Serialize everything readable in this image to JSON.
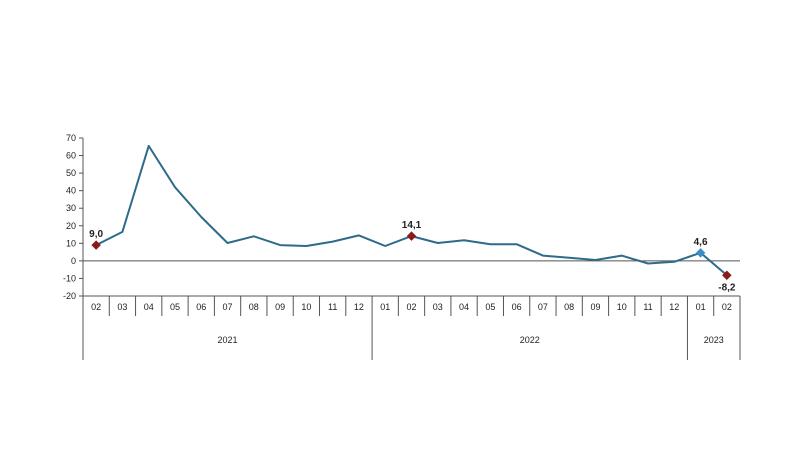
{
  "chart_data": {
    "type": "line",
    "title": "",
    "xlabel": "",
    "ylabel": "",
    "ylim": [
      -20,
      70
    ],
    "yticks": [
      70,
      60,
      50,
      40,
      30,
      20,
      10,
      0,
      -10,
      -20
    ],
    "grid": false,
    "categories": [
      "02",
      "03",
      "04",
      "05",
      "06",
      "07",
      "08",
      "09",
      "10",
      "11",
      "12",
      "01",
      "02",
      "03",
      "04",
      "05",
      "06",
      "07",
      "08",
      "09",
      "10",
      "11",
      "12",
      "01",
      "02"
    ],
    "year_groups": [
      {
        "label": "2021",
        "count": 11
      },
      {
        "label": "2022",
        "count": 12
      },
      {
        "label": "2023",
        "count": 2
      }
    ],
    "series": [
      {
        "values": [
          9.0,
          16.5,
          65.5,
          42.0,
          25.0,
          10.2,
          14.0,
          9.0,
          8.5,
          11.0,
          14.5,
          8.5,
          14.1,
          10.2,
          11.8,
          9.5,
          9.5,
          3.0,
          1.8,
          0.5,
          3.0,
          -1.5,
          -0.5,
          4.6,
          -8.2
        ]
      }
    ],
    "data_labels": [
      {
        "index": 0,
        "text": "9,0"
      },
      {
        "index": 12,
        "text": "14,1"
      },
      {
        "index": 23,
        "text": "4,6"
      },
      {
        "index": 24,
        "text": "-8,2"
      }
    ],
    "colors": {
      "line": "#2e6b8a",
      "marker_highlight": "#8b1a1a",
      "marker_latest": "#3a8fc7",
      "axis": "#555555"
    }
  }
}
